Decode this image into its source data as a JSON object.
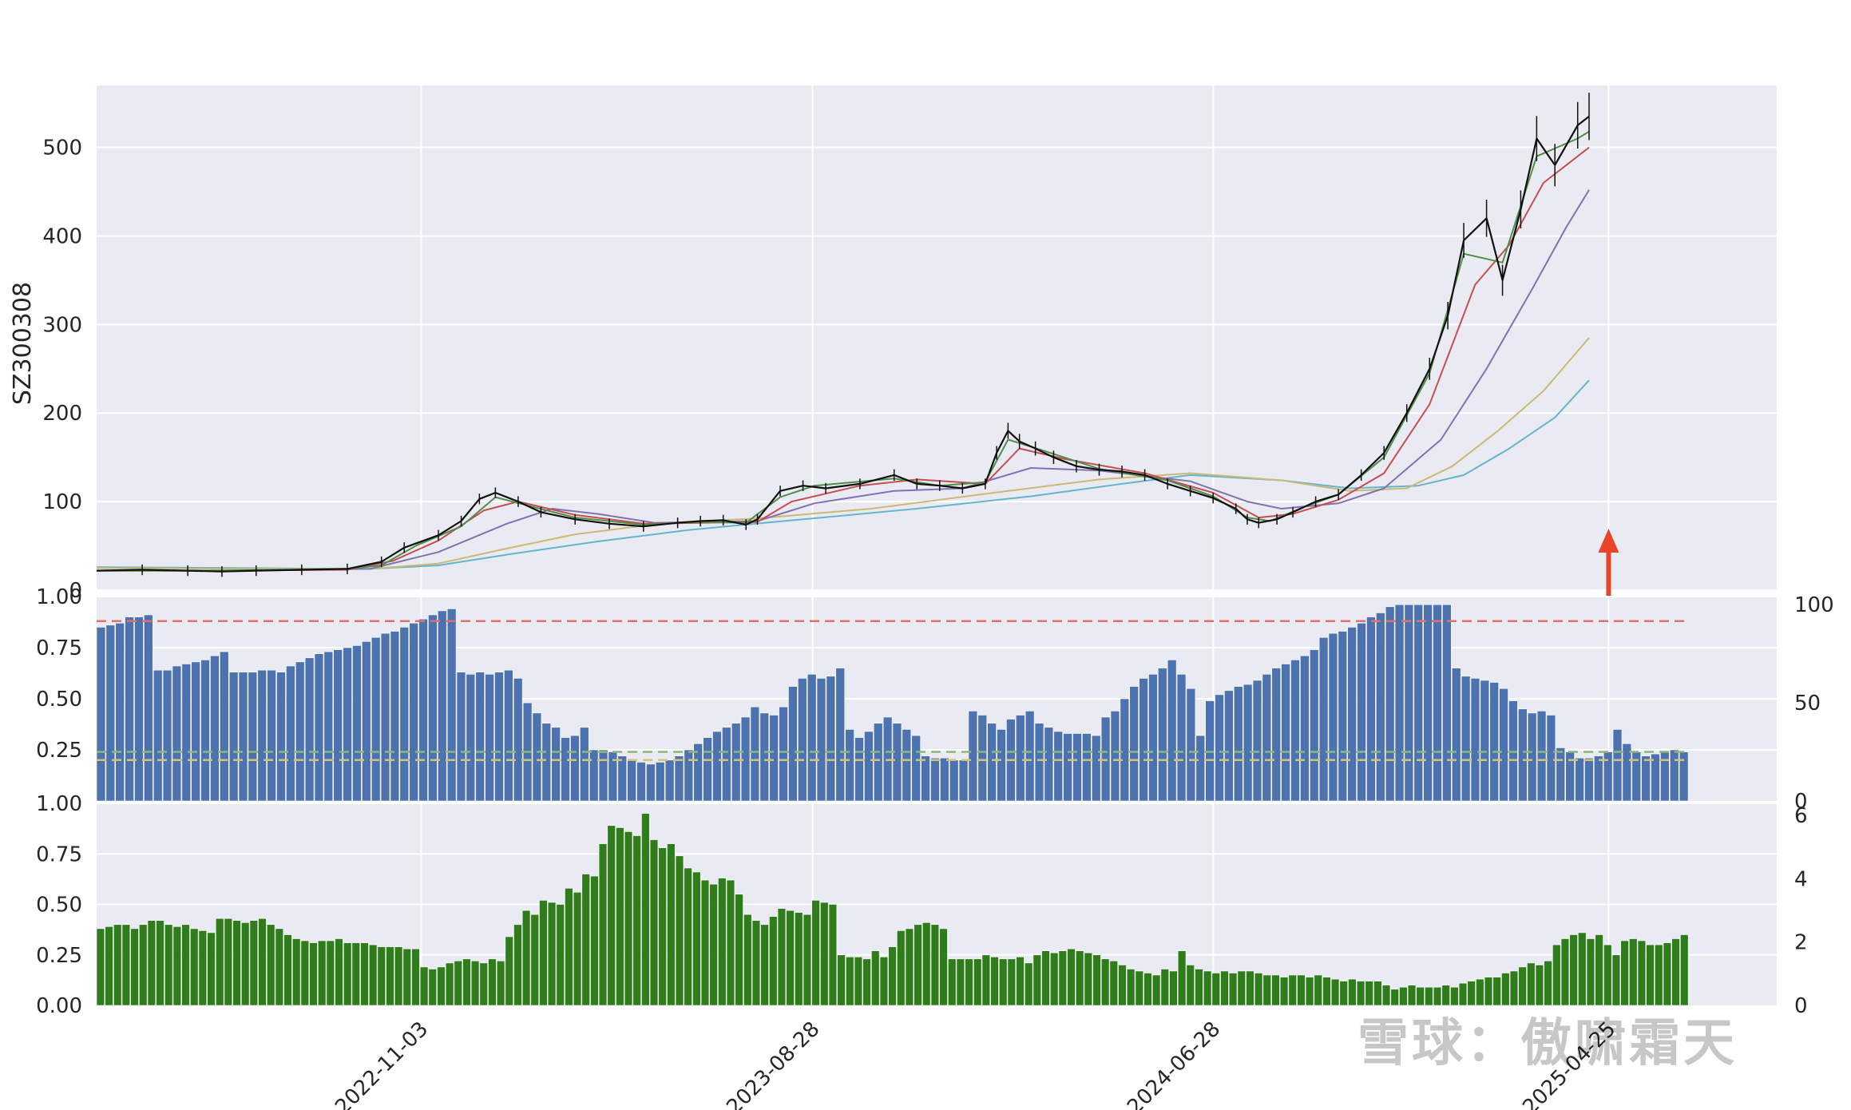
{
  "symbol": "SZ300308",
  "watermark": "雪球：傲啸霜天",
  "colors": {
    "panel_bg": "#eaeaf2",
    "grid": "#ffffff",
    "candle": "#111111",
    "bar_blue": "#4c72b0",
    "bar_green": "#2e7d1a",
    "arrow": "#e8442a",
    "ref_red": "#e07070",
    "ref_green": "#8cb87c",
    "ref_yellow": "#d4c27a",
    "ma_fast": "#4f8f4a",
    "ma_mid": "#c44e52",
    "ma_purple": "#8172b3",
    "ma_tan": "#ccb974",
    "ma_blue": "#64b5cd"
  },
  "chart_data": [
    {
      "type": "line",
      "title": "",
      "ylabel": "SZ300308",
      "ylim": [
        0,
        570
      ],
      "yticks": [
        "0",
        "100",
        "200",
        "300",
        "400",
        "500"
      ],
      "xticks": [
        "2022-11-03",
        "2023-08-28",
        "2024-06-28",
        "2025-04-25"
      ],
      "x_range": [
        "2022-03-01",
        "2025-08-31"
      ],
      "series": [
        {
          "key": "price",
          "values": [
            [
              0,
              22
            ],
            [
              20,
              23
            ],
            [
              40,
              22
            ],
            [
              55,
              21
            ],
            [
              70,
              22
            ],
            [
              90,
              23
            ],
            [
              110,
              24
            ],
            [
              125,
              32
            ],
            [
              135,
              48
            ],
            [
              150,
              62
            ],
            [
              160,
              78
            ],
            [
              168,
              103
            ],
            [
              175,
              110
            ],
            [
              185,
              100
            ],
            [
              195,
              88
            ],
            [
              210,
              80
            ],
            [
              225,
              75
            ],
            [
              240,
              72
            ],
            [
              255,
              76
            ],
            [
              265,
              78
            ],
            [
              275,
              79
            ],
            [
              285,
              74
            ],
            [
              290,
              80
            ],
            [
              300,
              112
            ],
            [
              310,
              118
            ],
            [
              320,
              115
            ],
            [
              335,
              120
            ],
            [
              350,
              130
            ],
            [
              360,
              120
            ],
            [
              370,
              118
            ],
            [
              380,
              115
            ],
            [
              390,
              120
            ],
            [
              395,
              155
            ],
            [
              400,
              180
            ],
            [
              405,
              168
            ],
            [
              412,
              160
            ],
            [
              420,
              150
            ],
            [
              430,
              140
            ],
            [
              440,
              136
            ],
            [
              450,
              134
            ],
            [
              460,
              130
            ],
            [
              470,
              120
            ],
            [
              480,
              112
            ],
            [
              490,
              104
            ],
            [
              500,
              92
            ],
            [
              505,
              80
            ],
            [
              510,
              76
            ],
            [
              518,
              80
            ],
            [
              525,
              88
            ],
            [
              535,
              100
            ],
            [
              545,
              108
            ],
            [
              555,
              130
            ],
            [
              565,
              155
            ],
            [
              575,
              200
            ],
            [
              585,
              250
            ],
            [
              593,
              310
            ],
            [
              600,
              395
            ],
            [
              610,
              420
            ],
            [
              617,
              350
            ],
            [
              625,
              430
            ],
            [
              632,
              510
            ],
            [
              640,
              480
            ],
            [
              650,
              525
            ],
            [
              655,
              535
            ]
          ]
        },
        {
          "key": "ma_fast",
          "values": [
            [
              0,
              22
            ],
            [
              50,
              22
            ],
            [
              110,
              24
            ],
            [
              125,
              28
            ],
            [
              140,
              50
            ],
            [
              160,
              72
            ],
            [
              175,
              105
            ],
            [
              190,
              95
            ],
            [
              210,
              82
            ],
            [
              240,
              74
            ],
            [
              265,
              77
            ],
            [
              285,
              76
            ],
            [
              300,
              105
            ],
            [
              315,
              118
            ],
            [
              350,
              126
            ],
            [
              370,
              118
            ],
            [
              390,
              122
            ],
            [
              400,
              170
            ],
            [
              415,
              158
            ],
            [
              440,
              137
            ],
            [
              470,
              124
            ],
            [
              490,
              106
            ],
            [
              505,
              82
            ],
            [
              515,
              78
            ],
            [
              530,
              94
            ],
            [
              545,
              108
            ],
            [
              565,
              150
            ],
            [
              585,
              245
            ],
            [
              600,
              380
            ],
            [
              617,
              370
            ],
            [
              632,
              490
            ],
            [
              650,
              510
            ],
            [
              655,
              518
            ]
          ]
        },
        {
          "key": "ma_mid",
          "values": [
            [
              0,
              22
            ],
            [
              50,
              22
            ],
            [
              110,
              23
            ],
            [
              130,
              33
            ],
            [
              150,
              56
            ],
            [
              170,
              90
            ],
            [
              185,
              100
            ],
            [
              210,
              85
            ],
            [
              240,
              75
            ],
            [
              265,
              76
            ],
            [
              290,
              77
            ],
            [
              305,
              100
            ],
            [
              335,
              118
            ],
            [
              360,
              125
            ],
            [
              390,
              120
            ],
            [
              405,
              160
            ],
            [
              425,
              148
            ],
            [
              460,
              132
            ],
            [
              490,
              110
            ],
            [
              510,
              82
            ],
            [
              525,
              86
            ],
            [
              545,
              102
            ],
            [
              565,
              132
            ],
            [
              585,
              210
            ],
            [
              605,
              345
            ],
            [
              620,
              390
            ],
            [
              635,
              460
            ],
            [
              655,
              500
            ]
          ]
        },
        {
          "key": "ma_purple",
          "values": [
            [
              0,
              22
            ],
            [
              60,
              22
            ],
            [
              120,
              24
            ],
            [
              150,
              43
            ],
            [
              180,
              75
            ],
            [
              200,
              92
            ],
            [
              220,
              86
            ],
            [
              245,
              76
            ],
            [
              290,
              78
            ],
            [
              315,
              98
            ],
            [
              350,
              112
            ],
            [
              380,
              115
            ],
            [
              410,
              138
            ],
            [
              440,
              135
            ],
            [
              480,
              123
            ],
            [
              505,
              100
            ],
            [
              520,
              92
            ],
            [
              545,
              98
            ],
            [
              565,
              115
            ],
            [
              590,
              170
            ],
            [
              610,
              250
            ],
            [
              630,
              340
            ],
            [
              645,
              410
            ],
            [
              655,
              452
            ]
          ]
        },
        {
          "key": "ma_tan",
          "values": [
            [
              0,
              25
            ],
            [
              60,
              24
            ],
            [
              120,
              24
            ],
            [
              150,
              30
            ],
            [
              180,
              47
            ],
            [
              210,
              63
            ],
            [
              250,
              76
            ],
            [
              290,
              81
            ],
            [
              340,
              92
            ],
            [
              400,
              112
            ],
            [
              440,
              125
            ],
            [
              480,
              132
            ],
            [
              520,
              124
            ],
            [
              550,
              112
            ],
            [
              575,
              115
            ],
            [
              595,
              140
            ],
            [
              615,
              180
            ],
            [
              635,
              225
            ],
            [
              655,
              285
            ]
          ]
        },
        {
          "key": "ma_blue",
          "values": [
            [
              0,
              26
            ],
            [
              60,
              25
            ],
            [
              120,
              24
            ],
            [
              150,
              28
            ],
            [
              180,
              40
            ],
            [
              220,
              55
            ],
            [
              260,
              68
            ],
            [
              310,
              80
            ],
            [
              360,
              92
            ],
            [
              410,
              106
            ],
            [
              450,
              120
            ],
            [
              480,
              130
            ],
            [
              520,
              124
            ],
            [
              550,
              115
            ],
            [
              580,
              118
            ],
            [
              600,
              130
            ],
            [
              620,
              160
            ],
            [
              640,
              195
            ],
            [
              655,
              237
            ]
          ]
        }
      ],
      "arrow_at": "2025-04-25"
    },
    {
      "type": "bar",
      "title": "",
      "ylim": [
        0,
        1.0
      ],
      "yticks_left": [
        "0.25",
        "0.50",
        "0.75",
        "1.00"
      ],
      "yticks_right": [
        "0",
        "50",
        "100"
      ],
      "reference_lines": [
        0.88,
        0.24,
        0.2
      ],
      "values": [
        0.85,
        0.86,
        0.87,
        0.9,
        0.9,
        0.91,
        0.64,
        0.64,
        0.66,
        0.67,
        0.68,
        0.69,
        0.71,
        0.73,
        0.63,
        0.63,
        0.63,
        0.64,
        0.64,
        0.63,
        0.66,
        0.68,
        0.7,
        0.72,
        0.73,
        0.74,
        0.75,
        0.76,
        0.78,
        0.8,
        0.82,
        0.83,
        0.85,
        0.87,
        0.89,
        0.91,
        0.93,
        0.94,
        0.63,
        0.62,
        0.63,
        0.62,
        0.63,
        0.64,
        0.6,
        0.48,
        0.43,
        0.38,
        0.36,
        0.31,
        0.32,
        0.36,
        0.25,
        0.25,
        0.24,
        0.22,
        0.2,
        0.19,
        0.18,
        0.19,
        0.2,
        0.22,
        0.25,
        0.28,
        0.31,
        0.34,
        0.36,
        0.38,
        0.41,
        0.46,
        0.43,
        0.42,
        0.46,
        0.56,
        0.6,
        0.62,
        0.6,
        0.61,
        0.65,
        0.35,
        0.31,
        0.34,
        0.38,
        0.41,
        0.38,
        0.35,
        0.32,
        0.22,
        0.21,
        0.21,
        0.2,
        0.2,
        0.44,
        0.42,
        0.38,
        0.35,
        0.4,
        0.42,
        0.44,
        0.38,
        0.36,
        0.34,
        0.33,
        0.33,
        0.33,
        0.32,
        0.41,
        0.44,
        0.5,
        0.56,
        0.6,
        0.62,
        0.65,
        0.69,
        0.62,
        0.55,
        0.32,
        0.49,
        0.52,
        0.54,
        0.56,
        0.57,
        0.59,
        0.62,
        0.65,
        0.67,
        0.69,
        0.71,
        0.74,
        0.8,
        0.82,
        0.83,
        0.85,
        0.87,
        0.9,
        0.92,
        0.95,
        0.96,
        0.96,
        0.96,
        0.96,
        0.96,
        0.96,
        0.65,
        0.61,
        0.6,
        0.59,
        0.58,
        0.55,
        0.49,
        0.45,
        0.43,
        0.44,
        0.42,
        0.26,
        0.24,
        0.21,
        0.21,
        0.22,
        0.24,
        0.35,
        0.28,
        0.24,
        0.22,
        0.23,
        0.24,
        0.25,
        0.24
      ]
    },
    {
      "type": "bar",
      "title": "",
      "ylim": [
        0,
        1.0
      ],
      "yticks_left": [
        "0.00",
        "0.25",
        "0.50",
        "0.75",
        "1.00"
      ],
      "yticks_right": [
        "0",
        "2",
        "4",
        "6"
      ],
      "values": [
        0.38,
        0.39,
        0.4,
        0.4,
        0.38,
        0.4,
        0.42,
        0.42,
        0.4,
        0.39,
        0.4,
        0.38,
        0.37,
        0.36,
        0.43,
        0.43,
        0.42,
        0.41,
        0.42,
        0.43,
        0.4,
        0.38,
        0.35,
        0.33,
        0.32,
        0.31,
        0.32,
        0.32,
        0.33,
        0.31,
        0.31,
        0.31,
        0.3,
        0.29,
        0.29,
        0.29,
        0.28,
        0.28,
        0.19,
        0.18,
        0.19,
        0.21,
        0.22,
        0.23,
        0.22,
        0.21,
        0.23,
        0.22,
        0.34,
        0.4,
        0.47,
        0.45,
        0.52,
        0.51,
        0.5,
        0.58,
        0.56,
        0.65,
        0.64,
        0.8,
        0.89,
        0.88,
        0.86,
        0.84,
        0.95,
        0.82,
        0.78,
        0.8,
        0.74,
        0.68,
        0.66,
        0.62,
        0.6,
        0.63,
        0.62,
        0.55,
        0.45,
        0.42,
        0.4,
        0.44,
        0.48,
        0.47,
        0.46,
        0.45,
        0.52,
        0.51,
        0.5,
        0.25,
        0.24,
        0.24,
        0.23,
        0.27,
        0.24,
        0.29,
        0.37,
        0.38,
        0.4,
        0.41,
        0.4,
        0.38,
        0.23,
        0.23,
        0.23,
        0.23,
        0.25,
        0.24,
        0.23,
        0.23,
        0.24,
        0.21,
        0.25,
        0.27,
        0.26,
        0.27,
        0.28,
        0.27,
        0.26,
        0.25,
        0.23,
        0.22,
        0.2,
        0.18,
        0.17,
        0.16,
        0.15,
        0.18,
        0.17,
        0.27,
        0.2,
        0.18,
        0.17,
        0.16,
        0.17,
        0.16,
        0.17,
        0.17,
        0.16,
        0.15,
        0.15,
        0.14,
        0.15,
        0.15,
        0.14,
        0.15,
        0.14,
        0.13,
        0.12,
        0.13,
        0.12,
        0.12,
        0.12,
        0.1,
        0.08,
        0.09,
        0.1,
        0.09,
        0.09,
        0.09,
        0.1,
        0.09,
        0.11,
        0.12,
        0.13,
        0.14,
        0.14,
        0.16,
        0.17,
        0.19,
        0.21,
        0.2,
        0.22,
        0.3,
        0.33,
        0.35,
        0.36,
        0.33,
        0.35,
        0.3,
        0.25,
        0.32,
        0.33,
        0.32,
        0.3,
        0.3,
        0.31,
        0.33,
        0.35
      ]
    }
  ]
}
